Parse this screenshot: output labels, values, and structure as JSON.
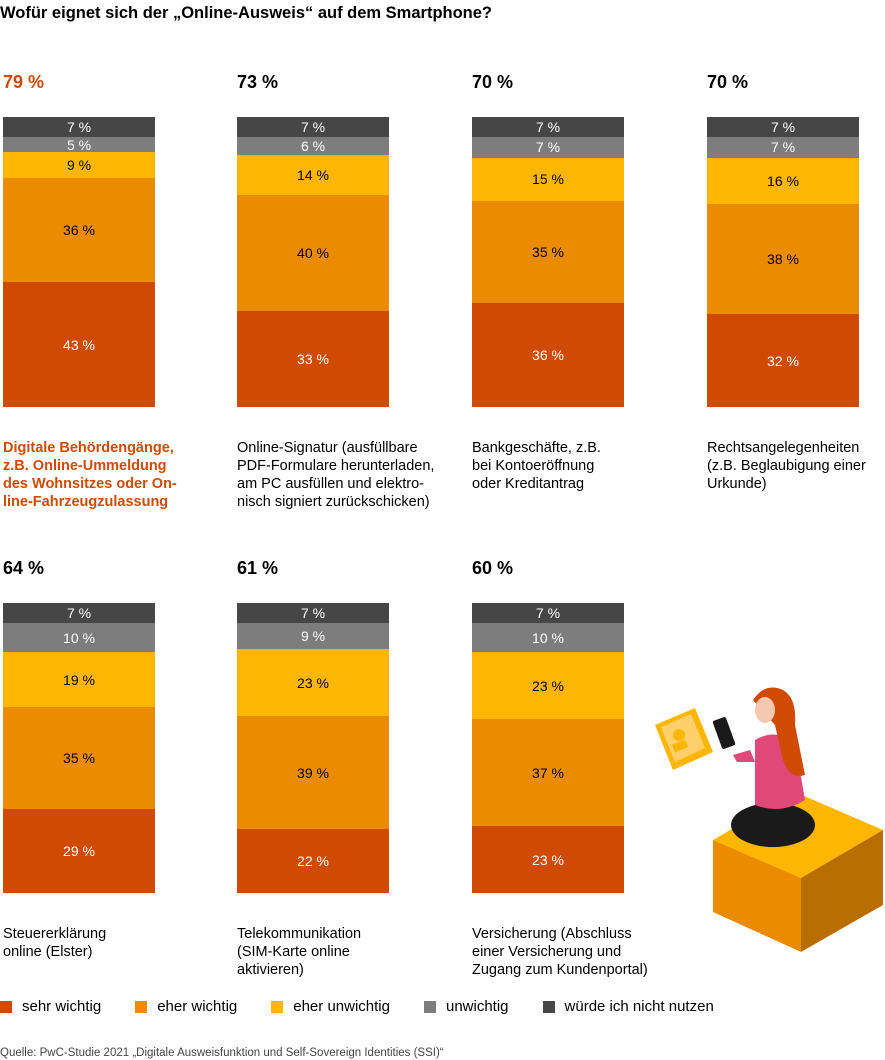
{
  "title": "Wofür eignet sich der „Online-Ausweis“ auf dem Smartphone?",
  "source": "Quelle: PwC-Studie 2021 „Digitale Ausweisfunktion und Self-Sovereign Identities (SSI)“",
  "colors": {
    "sehr_wichtig": "#d04a02",
    "eher_wichtig": "#eb8c00",
    "eher_unwichtig": "#ffb600",
    "unwichtig": "#7d7d7d",
    "nicht_nutzen": "#464646",
    "highlight_text": "#d04a02"
  },
  "legend": [
    {
      "label": "sehr wichtig",
      "color": "#d04a02"
    },
    {
      "label": "eher wichtig",
      "color": "#eb8c00"
    },
    {
      "label": "eher unwichtig",
      "color": "#ffb600"
    },
    {
      "label": "unwichtig",
      "color": "#7d7d7d"
    },
    {
      "label": "würde ich nicht nutzen",
      "color": "#464646"
    }
  ],
  "chart_data": {
    "type": "bar",
    "stacked": true,
    "unit": "%",
    "series_names": [
      "sehr wichtig",
      "eher wichtig",
      "eher unwichtig",
      "unwichtig",
      "würde ich nicht nutzen"
    ],
    "categories": [
      {
        "total": "79 %",
        "label": "Digitale Behördengänge, z.B. Online-Ummeldung des Wohnsitzes oder Online-Fahrzeugzulassung",
        "label_lines": [
          "Digitale Behördengänge,",
          "z.B. Online-Ummeldung",
          "des Wohnsitzes oder On-",
          "line-Fahrzeugzulassung"
        ],
        "highlight": true,
        "values": [
          43,
          36,
          9,
          5,
          7
        ]
      },
      {
        "total": "73 %",
        "label": "Online-Signatur (ausfüllbare PDF-Formulare herunterladen, am PC ausfüllen und elektronisch signiert zurückschicken)",
        "label_lines": [
          "Online-Signatur (ausfüllbare",
          "PDF-Formulare herunterladen,",
          "am PC ausfüllen und elektro-",
          "nisch signiert zurückschicken)"
        ],
        "highlight": false,
        "values": [
          33,
          40,
          14,
          6,
          7
        ]
      },
      {
        "total": "70 %",
        "label": "Bankgeschäfte, z.B. bei Kontoeröffnung oder Kreditantrag",
        "label_lines": [
          "Bankgeschäfte, z.B.",
          "bei Kontoeröffnung",
          "oder Kreditantrag"
        ],
        "highlight": false,
        "values": [
          36,
          35,
          15,
          7,
          7
        ]
      },
      {
        "total": "70 %",
        "label": "Rechtsangelegenheiten (z.B. Beglaubigung einer Urkunde)",
        "label_lines": [
          "Rechtsangelegenheiten",
          "(z.B. Beglaubigung einer",
          "Urkunde)"
        ],
        "highlight": false,
        "values": [
          32,
          38,
          16,
          7,
          7
        ]
      },
      {
        "total": "64 %",
        "label": "Steuererklärung online (Elster)",
        "label_lines": [
          "Steuererklärung",
          "online (Elster)"
        ],
        "highlight": false,
        "values": [
          29,
          35,
          19,
          10,
          7
        ]
      },
      {
        "total": "61 %",
        "label": "Telekommunikation (SIM-Karte online aktivieren)",
        "label_lines": [
          "Telekommunikation",
          "(SIM-Karte online",
          "aktivieren)"
        ],
        "highlight": false,
        "values": [
          22,
          39,
          23,
          9,
          7
        ]
      },
      {
        "total": "60 %",
        "label": "Versicherung (Abschluss einer Versicherung und Zugang zum Kundenportal)",
        "label_lines": [
          "Versicherung (Abschluss",
          "einer Versicherung und",
          "Zugang zum Kundenportal)"
        ],
        "highlight": false,
        "values": [
          23,
          37,
          23,
          10,
          7
        ]
      }
    ]
  }
}
